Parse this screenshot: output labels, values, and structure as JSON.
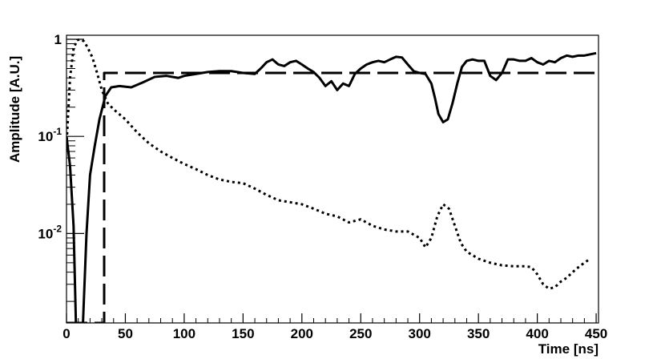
{
  "chart_data": {
    "type": "line",
    "title": "",
    "xlabel": "Time [ns]",
    "ylabel": "Amplitude [A.U.]",
    "xlim": [
      0,
      452
    ],
    "ylim": [
      0.0012,
      1.1
    ],
    "yscale": "log",
    "grid": false,
    "legend": "none",
    "x_ticks": [
      {
        "value": 0,
        "label": "0"
      },
      {
        "value": 50,
        "label": "50"
      },
      {
        "value": 100,
        "label": "100"
      },
      {
        "value": 150,
        "label": "150"
      },
      {
        "value": 200,
        "label": "200"
      },
      {
        "value": 250,
        "label": "250"
      },
      {
        "value": 300,
        "label": "300"
      },
      {
        "value": 350,
        "label": "350"
      },
      {
        "value": 400,
        "label": "400"
      },
      {
        "value": 450,
        "label": "450"
      }
    ],
    "y_ticks": [
      {
        "value": 1,
        "base": "1",
        "exp": ""
      },
      {
        "value": 0.1,
        "base": "10",
        "exp": "-1"
      },
      {
        "value": 0.01,
        "base": "10",
        "exp": "-2"
      }
    ],
    "series": [
      {
        "style": "solid",
        "color": "#000000",
        "x": [
          0,
          3,
          6,
          8,
          10,
          12,
          14,
          17,
          20,
          24,
          28,
          33,
          38,
          45,
          55,
          65,
          75,
          85,
          95,
          100,
          110,
          120,
          130,
          140,
          150,
          160,
          165,
          170,
          175,
          180,
          185,
          190,
          195,
          200,
          205,
          210,
          215,
          220,
          225,
          230,
          235,
          240,
          245,
          250,
          255,
          260,
          265,
          270,
          275,
          280,
          285,
          290,
          295,
          300,
          305,
          310,
          313,
          316,
          320,
          324,
          328,
          332,
          336,
          340,
          345,
          350,
          355,
          360,
          365,
          370,
          375,
          380,
          385,
          390,
          395,
          400,
          405,
          410,
          415,
          420,
          425,
          430,
          435,
          440,
          445,
          450
        ],
        "y": [
          0.1,
          0.05,
          0.012,
          0.001,
          0.001,
          0.001,
          0.001,
          0.01,
          0.04,
          0.08,
          0.15,
          0.26,
          0.32,
          0.33,
          0.32,
          0.36,
          0.41,
          0.42,
          0.4,
          0.42,
          0.44,
          0.46,
          0.47,
          0.47,
          0.45,
          0.44,
          0.5,
          0.58,
          0.62,
          0.55,
          0.53,
          0.58,
          0.6,
          0.55,
          0.5,
          0.46,
          0.4,
          0.33,
          0.37,
          0.3,
          0.35,
          0.33,
          0.44,
          0.5,
          0.55,
          0.58,
          0.6,
          0.58,
          0.62,
          0.66,
          0.65,
          0.55,
          0.47,
          0.45,
          0.44,
          0.35,
          0.25,
          0.17,
          0.14,
          0.15,
          0.22,
          0.35,
          0.52,
          0.6,
          0.62,
          0.6,
          0.6,
          0.42,
          0.38,
          0.45,
          0.62,
          0.62,
          0.6,
          0.6,
          0.64,
          0.58,
          0.55,
          0.6,
          0.58,
          0.64,
          0.68,
          0.66,
          0.68,
          0.68,
          0.7,
          0.72
        ]
      },
      {
        "style": "dotted",
        "color": "#000000",
        "x": [
          0,
          3,
          6,
          9,
          12,
          15,
          18,
          22,
          26,
          30,
          35,
          40,
          50,
          60,
          70,
          80,
          90,
          100,
          110,
          120,
          130,
          140,
          150,
          160,
          170,
          180,
          190,
          200,
          210,
          220,
          230,
          240,
          250,
          260,
          270,
          280,
          290,
          300,
          305,
          310,
          315,
          320,
          325,
          330,
          335,
          340,
          350,
          360,
          370,
          380,
          390,
          395,
          400,
          405,
          410,
          415,
          420,
          425,
          430,
          435,
          440,
          445
        ],
        "y": [
          0.08,
          0.4,
          0.8,
          0.98,
          1.0,
          0.95,
          0.82,
          0.65,
          0.45,
          0.3,
          0.22,
          0.19,
          0.15,
          0.11,
          0.085,
          0.07,
          0.06,
          0.052,
          0.046,
          0.04,
          0.036,
          0.034,
          0.033,
          0.029,
          0.025,
          0.022,
          0.021,
          0.02,
          0.018,
          0.016,
          0.015,
          0.013,
          0.014,
          0.012,
          0.011,
          0.0105,
          0.0105,
          0.009,
          0.0072,
          0.009,
          0.015,
          0.02,
          0.018,
          0.012,
          0.008,
          0.0065,
          0.0055,
          0.005,
          0.0047,
          0.0046,
          0.0046,
          0.0045,
          0.0038,
          0.003,
          0.0027,
          0.0028,
          0.0032,
          0.0035,
          0.004,
          0.0045,
          0.005,
          0.0055
        ]
      },
      {
        "style": "dashed",
        "color": "#000000",
        "x": [
          0,
          32,
          32,
          452
        ],
        "y": [
          0.0012,
          0.0012,
          0.45,
          0.45
        ]
      }
    ]
  }
}
